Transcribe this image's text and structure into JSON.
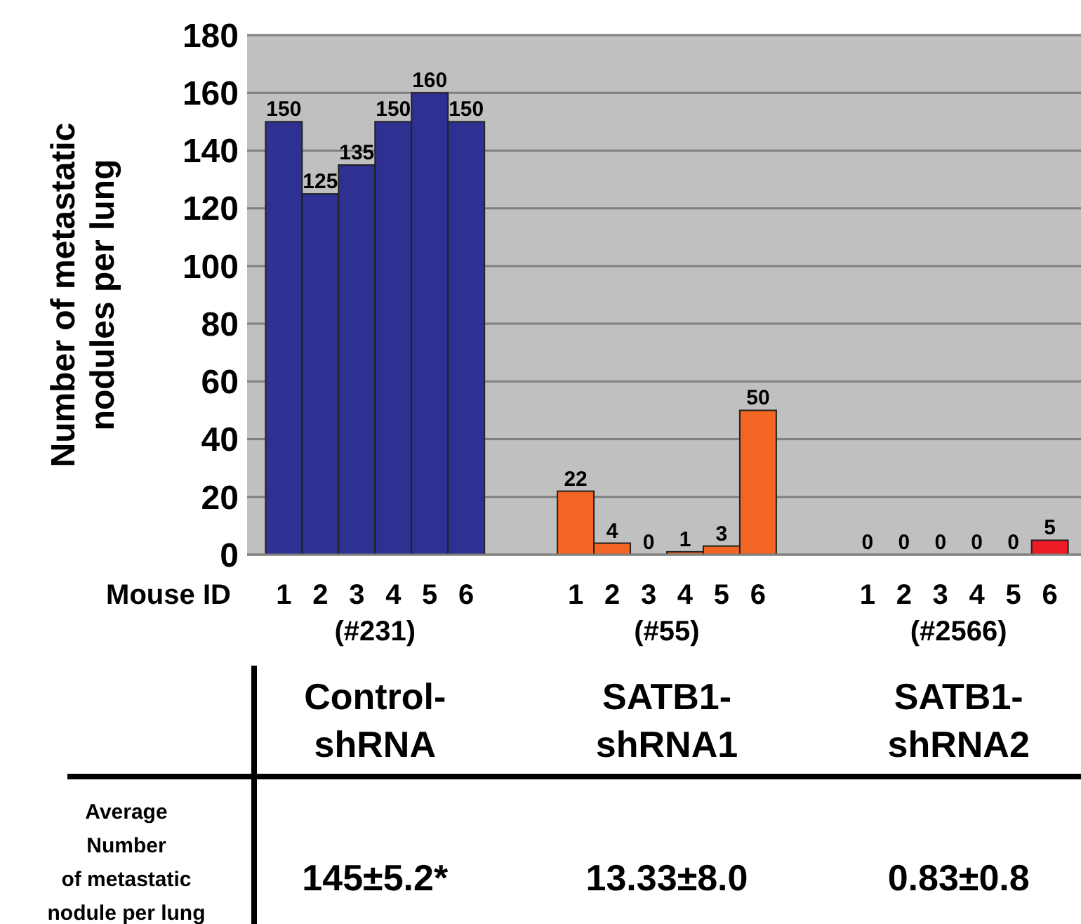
{
  "chart_data": {
    "type": "bar",
    "ylabel": "Number of metastatic\nnodules per lung",
    "categories": [
      "1",
      "2",
      "3",
      "4",
      "5",
      "6",
      null,
      null,
      "1",
      "2",
      "3",
      "4",
      "5",
      "6",
      null,
      null,
      "1",
      "2",
      "3",
      "4",
      "5",
      "6"
    ],
    "values": [
      150,
      125,
      135,
      150,
      160,
      150,
      null,
      null,
      22,
      4,
      0,
      1,
      3,
      50,
      null,
      null,
      0,
      0,
      0,
      0,
      0,
      5
    ],
    "colors": [
      "#2e3192",
      "#2e3192",
      "#2e3192",
      "#2e3192",
      "#2e3192",
      "#2e3192",
      null,
      null,
      "#f26522",
      "#f26522",
      "#f26522",
      "#f26522",
      "#f26522",
      "#f26522",
      null,
      null,
      "#ed1c24",
      "#ed1c24",
      "#ed1c24",
      "#ed1c24",
      "#ed1c24",
      "#ed1c24"
    ],
    "data_labels": true,
    "ylim": [
      0,
      180
    ],
    "yticks": [
      0,
      20,
      40,
      60,
      80,
      100,
      120,
      140,
      160,
      180
    ],
    "grid": "y",
    "annotations": [
      "Mouse ID",
      "(#231)",
      "(#55)",
      "(#2566)",
      "Control-shRNA",
      "SATB1-shRNA1",
      "SATB1-shRNA2",
      "Average\nNumber\nof metastatic\nnodule per lung",
      "145±5.2*",
      "13.33±8.0",
      "0.83±0.8"
    ]
  }
}
